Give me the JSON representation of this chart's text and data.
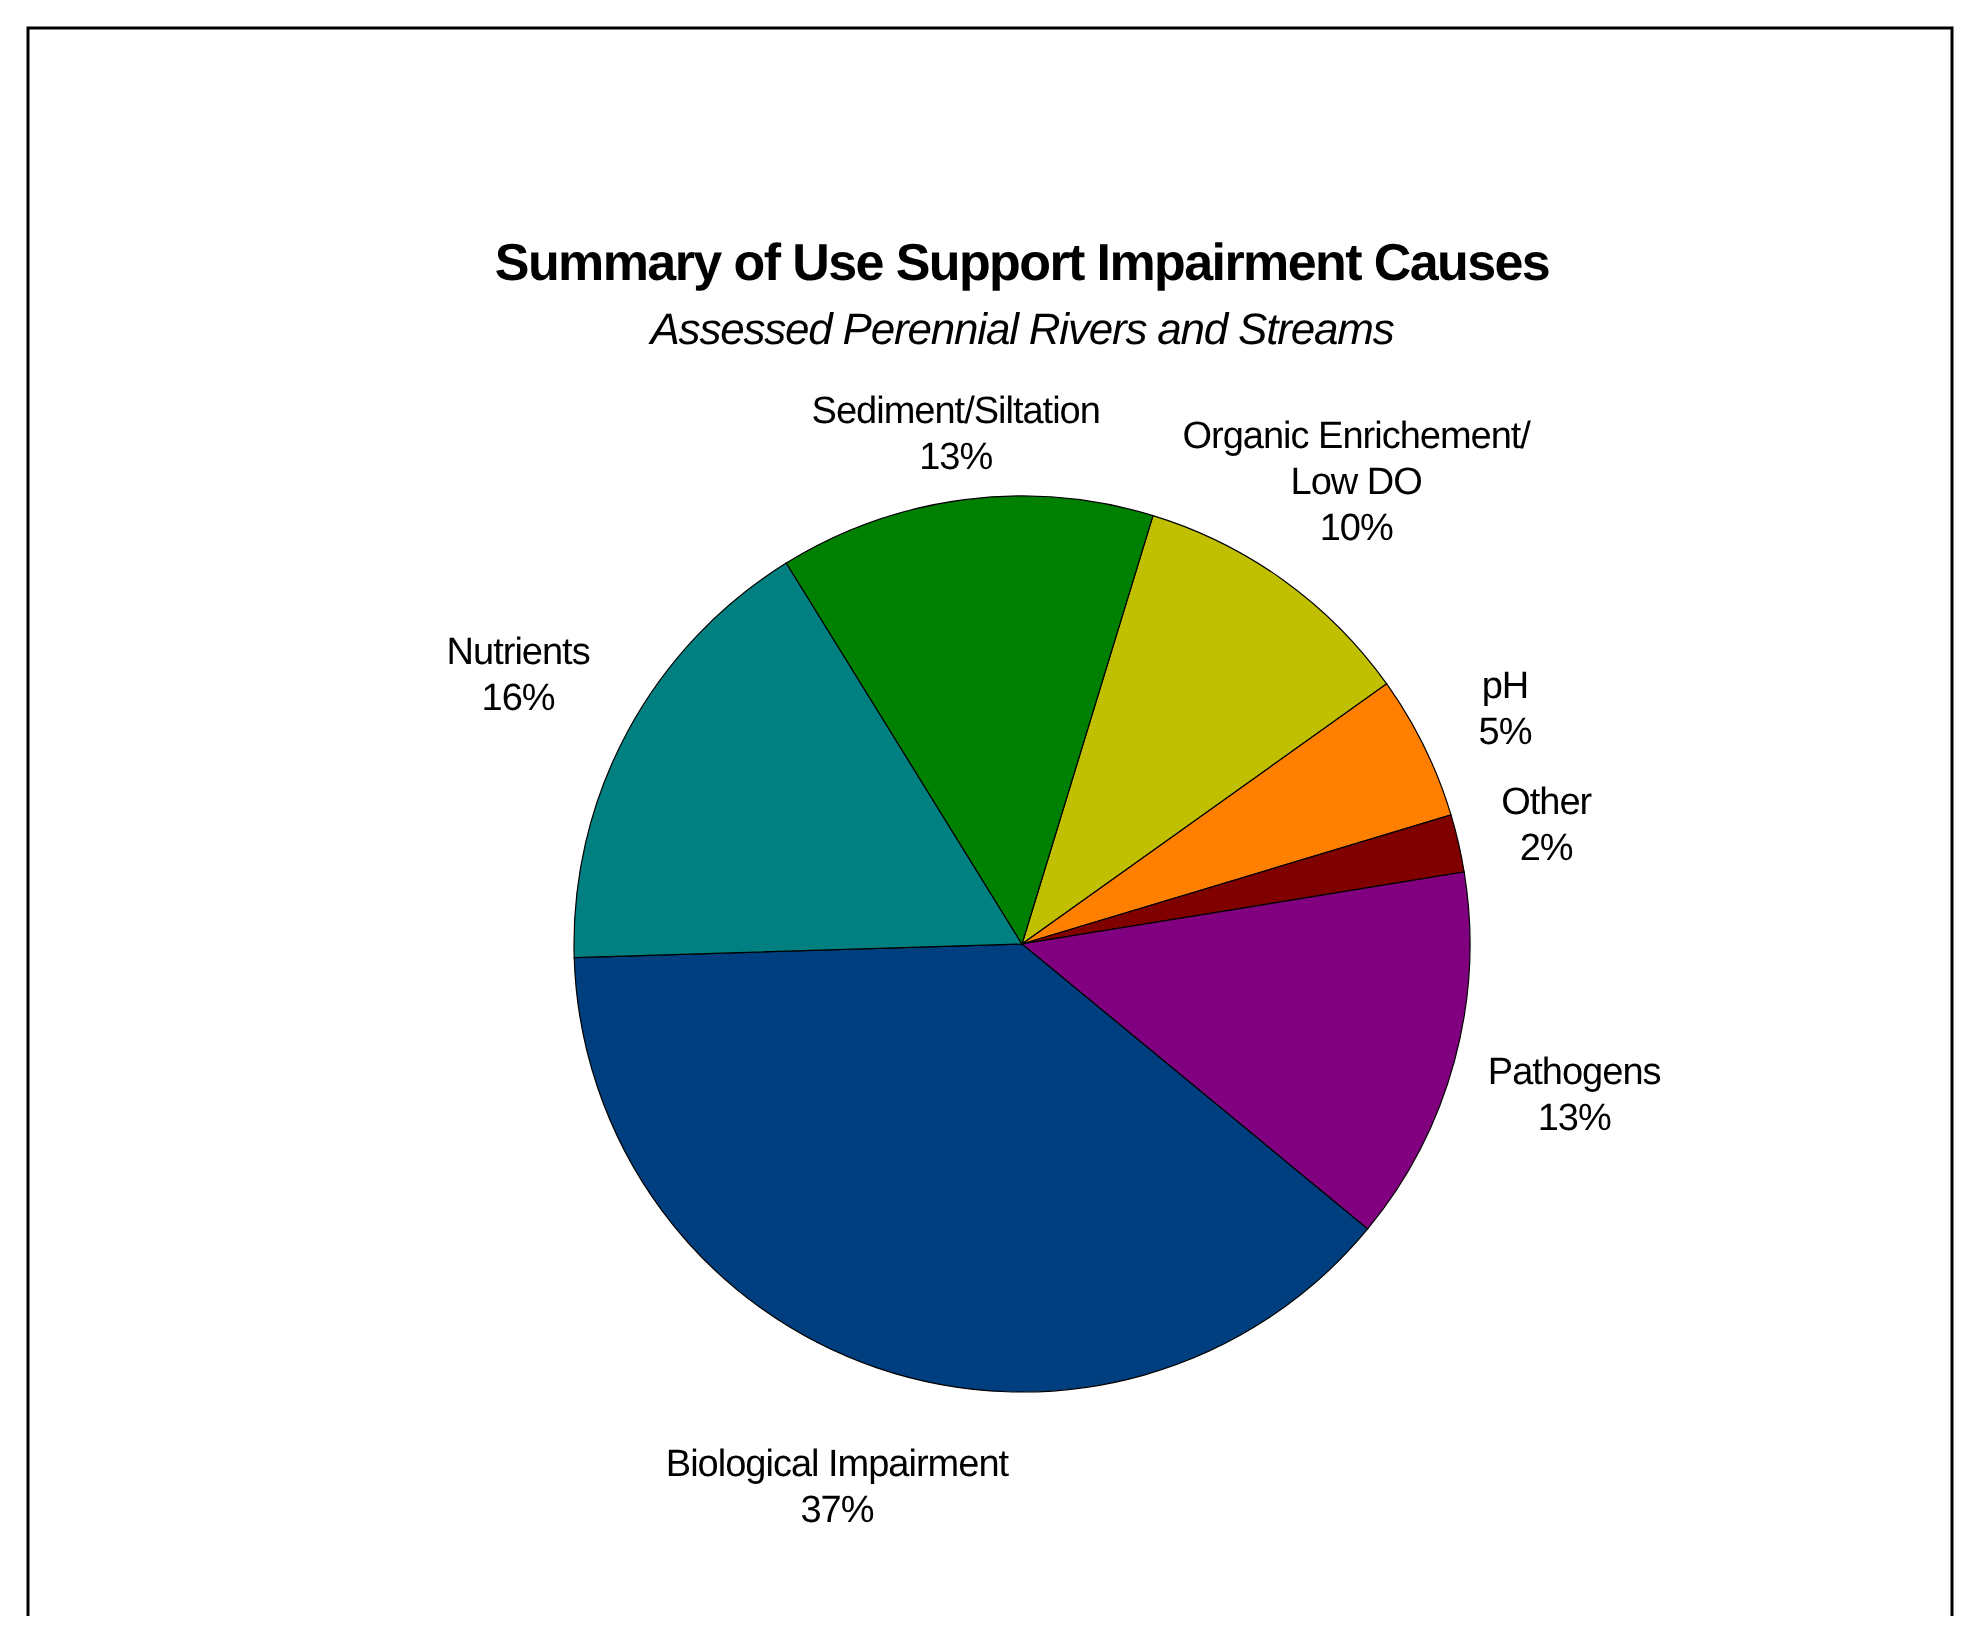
{
  "chart_data": {
    "type": "pie",
    "title": "Summary of Use Support Impairment Causes",
    "subtitle": "Assessed Perennial Rivers and Streams",
    "categories": [
      "Organic Enrichement/ Low DO",
      "pH",
      "Other",
      "Pathogens",
      "Biological Impairment",
      "Nutrients",
      "Sediment/Siltation"
    ],
    "values": [
      10,
      5,
      2,
      13,
      37,
      16,
      13
    ],
    "value_labels": [
      "10%",
      "5%",
      "2%",
      "13%",
      "37%",
      "16%",
      "13%"
    ],
    "colors": [
      "#c0c000",
      "#ff8000",
      "#800000",
      "#800080",
      "#003f7f",
      "#008080",
      "#008000"
    ],
    "legend": false
  }
}
